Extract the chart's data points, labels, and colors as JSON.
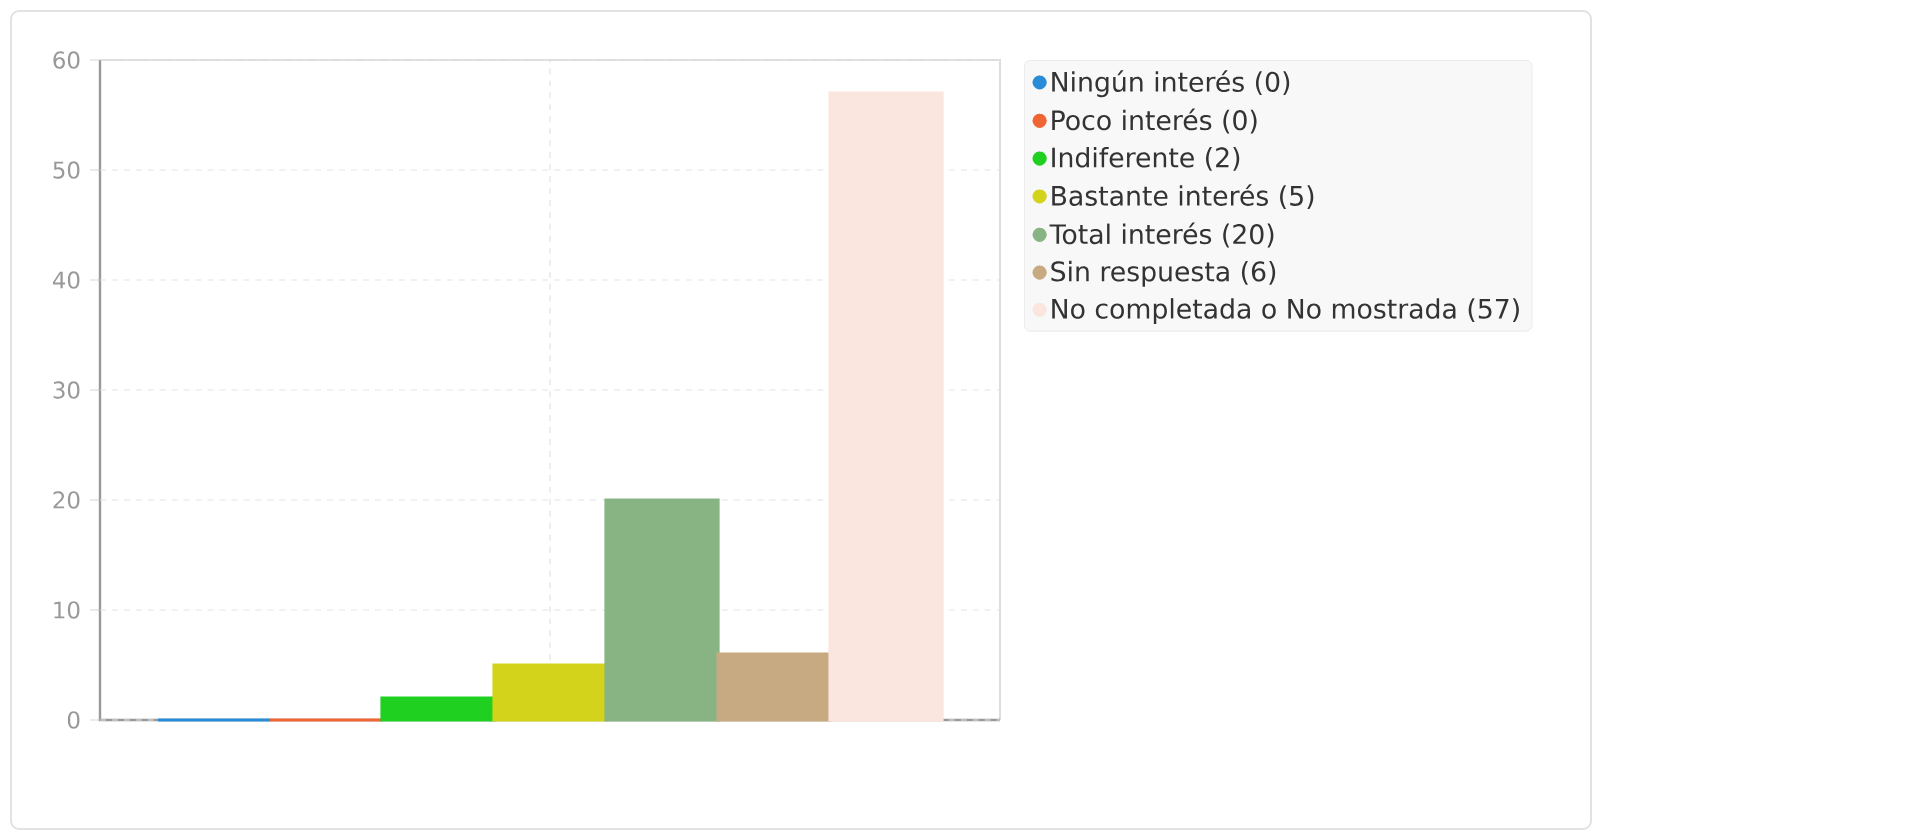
{
  "chart_data": {
    "type": "bar",
    "categories": [
      null
    ],
    "series": [
      {
        "name": "Ningún interés (0)",
        "color": "#2a8cd6",
        "values": [
          0
        ]
      },
      {
        "name": "Poco interés (0)",
        "color": "#ef6534",
        "values": [
          0
        ]
      },
      {
        "name": "Indiferente (2)",
        "color": "#20d020",
        "values": [
          2
        ]
      },
      {
        "name": "Bastante interés (5)",
        "color": "#d3d31c",
        "values": [
          5
        ]
      },
      {
        "name": "Total interés (20)",
        "color": "#88b383",
        "values": [
          20
        ]
      },
      {
        "name": "Sin respuesta (6)",
        "color": "#c8aa82",
        "values": [
          6
        ]
      },
      {
        "name": "No completada o No mostrada (57)",
        "color": "#fae6de",
        "values": [
          57
        ]
      }
    ],
    "ylim": [
      0,
      60
    ],
    "yticks": [
      0,
      10,
      20,
      30,
      40,
      50,
      60
    ],
    "grid": true,
    "legend": "right"
  }
}
